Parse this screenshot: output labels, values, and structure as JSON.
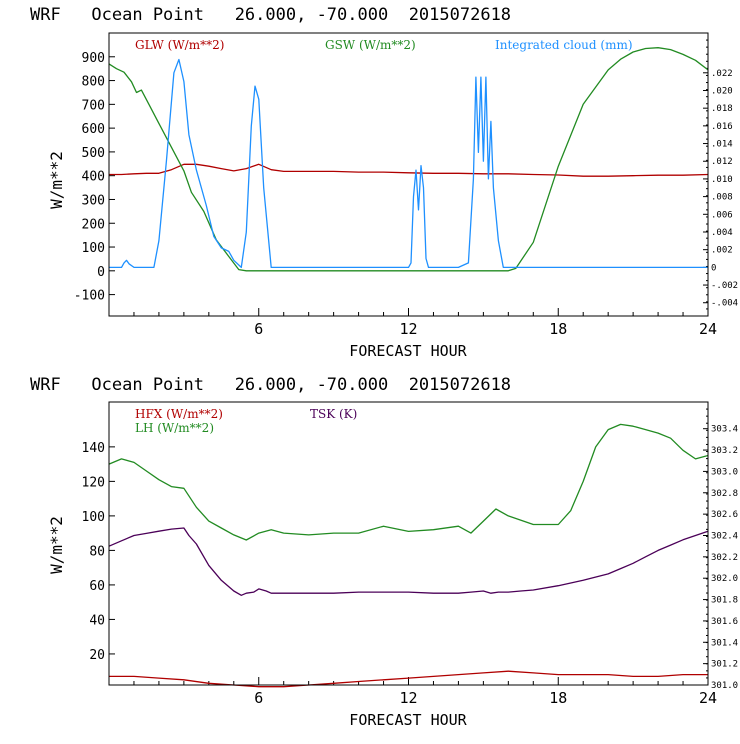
{
  "colors": {
    "glw": "#b00000",
    "gsw": "#228b22",
    "cloud": "#1e90ff",
    "hfx": "#b00000",
    "lh": "#228b22",
    "tsk": "#4b0058",
    "axis": "#000000"
  },
  "chart_data": [
    {
      "type": "line",
      "title": "WRF   Ocean Point   26.000, -70.000  2015072618",
      "xlabel": "FORECAST HOUR",
      "ylabel": "W/m**2",
      "xlim": [
        0,
        24
      ],
      "ylim": [
        -190,
        1000
      ],
      "x_ticks": [
        6,
        12,
        18,
        24
      ],
      "y_ticks": [
        -100,
        0,
        100,
        200,
        300,
        400,
        500,
        600,
        700,
        800,
        900
      ],
      "y2lim": [
        -0.0055,
        0.0265
      ],
      "y2_ticks": [
        "-.004",
        "-.002",
        "0",
        ".002",
        ".004",
        ".006",
        ".008",
        ".010",
        ".012",
        ".014",
        ".016",
        ".018",
        ".020",
        ".022"
      ],
      "y2_tick_values": [
        -0.004,
        -0.002,
        0,
        0.002,
        0.004,
        0.006,
        0.008,
        0.01,
        0.012,
        0.014,
        0.016,
        0.018,
        0.02,
        0.022
      ],
      "legend": "top",
      "series": [
        {
          "name": "GLW (W/m**2)",
          "axis": "left",
          "color": "#b00000",
          "x": [
            0,
            0.5,
            1,
            1.5,
            2,
            2.5,
            3,
            3.5,
            4,
            4.5,
            5,
            5.5,
            6,
            6.5,
            7,
            8,
            9,
            10,
            11,
            12,
            13,
            14,
            15,
            16,
            17,
            18,
            19,
            20,
            21,
            22,
            23,
            24
          ],
          "y": [
            405,
            405,
            408,
            410,
            410,
            425,
            448,
            448,
            440,
            430,
            420,
            430,
            448,
            425,
            418,
            418,
            418,
            415,
            415,
            412,
            410,
            410,
            408,
            408,
            405,
            403,
            398,
            398,
            400,
            402,
            402,
            405
          ]
        },
        {
          "name": "GSW (W/m**2)",
          "axis": "left",
          "color": "#228b22",
          "x": [
            0,
            0.3,
            0.6,
            0.9,
            1.1,
            1.3,
            1.6,
            2,
            2.5,
            3,
            3.3,
            3.8,
            4.3,
            4.8,
            5.2,
            5.5,
            6,
            8,
            10,
            12,
            14,
            16,
            16.3,
            17,
            18,
            19,
            20,
            20.5,
            21,
            21.5,
            22,
            22.5,
            23,
            23.5,
            24
          ],
          "y": [
            870,
            850,
            835,
            795,
            750,
            760,
            700,
            620,
            520,
            420,
            330,
            250,
            130,
            60,
            5,
            0,
            0,
            0,
            0,
            0,
            0,
            0,
            10,
            120,
            440,
            700,
            845,
            890,
            920,
            935,
            938,
            930,
            910,
            885,
            845
          ]
        },
        {
          "name": "Integrated cloud (mm)",
          "axis": "right",
          "color": "#1e90ff",
          "x": [
            0,
            0.5,
            0.6,
            0.7,
            0.8,
            1,
            1.8,
            2,
            2.3,
            2.6,
            2.8,
            3,
            3.2,
            3.5,
            3.9,
            4.2,
            4.5,
            4.8,
            5.0,
            5.3,
            5.5,
            5.7,
            5.85,
            6.0,
            6.2,
            6.5,
            8,
            10,
            12,
            12.1,
            12.2,
            12.3,
            12.4,
            12.5,
            12.6,
            12.7,
            12.8,
            13,
            14,
            14.4,
            14.6,
            14.7,
            14.8,
            14.9,
            15.0,
            15.1,
            15.2,
            15.3,
            15.4,
            15.6,
            15.8,
            16,
            18,
            20,
            22,
            24
          ],
          "y": [
            0,
            0,
            0.0005,
            0.0008,
            0.0004,
            0,
            0,
            0.003,
            0.012,
            0.022,
            0.0235,
            0.021,
            0.015,
            0.011,
            0.007,
            0.0035,
            0.0022,
            0.0018,
            0.0008,
            0,
            0.004,
            0.016,
            0.0205,
            0.019,
            0.009,
            0,
            0,
            0,
            0,
            0.0005,
            0.008,
            0.011,
            0.0065,
            0.0115,
            0.009,
            0.001,
            0,
            0,
            0,
            0.0005,
            0.01,
            0.0215,
            0.013,
            0.0215,
            0.012,
            0.0215,
            0.01,
            0.0165,
            0.009,
            0.003,
            0,
            0,
            0,
            0,
            0,
            0
          ]
        }
      ]
    },
    {
      "type": "line",
      "title": "WRF   Ocean Point   26.000, -70.000  2015072618",
      "xlabel": "FORECAST HOUR",
      "ylabel": "W/m**2",
      "xlim": [
        0,
        24
      ],
      "ylim": [
        2,
        166
      ],
      "x_ticks": [
        6,
        12,
        18,
        24
      ],
      "y_ticks": [
        20,
        40,
        60,
        80,
        100,
        120,
        140
      ],
      "y2lim": [
        301.0,
        303.65
      ],
      "y2_ticks": [
        "301.0",
        "301.2",
        "301.4",
        "301.6",
        "301.8",
        "302.0",
        "302.2",
        "302.4",
        "302.6",
        "302.8",
        "303.0",
        "303.2",
        "303.4"
      ],
      "y2_tick_values": [
        301.0,
        301.2,
        301.4,
        301.6,
        301.8,
        302.0,
        302.2,
        302.4,
        302.6,
        302.8,
        303.0,
        303.2,
        303.4
      ],
      "legend": "top-left",
      "series": [
        {
          "name": "HFX (W/m**2)",
          "axis": "left",
          "color": "#b00000",
          "x": [
            0,
            1,
            2,
            3,
            4,
            5,
            6,
            7,
            8,
            9,
            10,
            11,
            12,
            13,
            14,
            15,
            16,
            17,
            18,
            19,
            20,
            21,
            22,
            23,
            24
          ],
          "y": [
            7,
            7,
            6,
            5,
            3,
            2,
            1,
            1,
            2,
            3,
            4,
            5,
            6,
            7,
            8,
            9,
            10,
            9,
            8,
            8,
            8,
            7,
            7,
            8,
            8
          ]
        },
        {
          "name": "LH  (W/m**2)",
          "axis": "left",
          "color": "#228b22",
          "x": [
            0,
            0.5,
            1,
            1.5,
            2,
            2.5,
            3,
            3.5,
            4,
            4.5,
            5,
            5.5,
            6,
            6.5,
            7,
            8,
            9,
            10,
            11,
            12,
            13,
            14,
            14.5,
            15,
            15.5,
            16,
            17,
            18,
            18.5,
            19,
            19.5,
            20,
            20.5,
            21,
            21.5,
            22,
            22.5,
            23,
            23.5,
            24
          ],
          "y": [
            130,
            133,
            131,
            126,
            121,
            117,
            116,
            105,
            97,
            93,
            89,
            86,
            90,
            92,
            90,
            89,
            90,
            90,
            94,
            91,
            92,
            94,
            90,
            97,
            104,
            100,
            95,
            95,
            103,
            120,
            140,
            150,
            153,
            152,
            150,
            148,
            145,
            138,
            133,
            135
          ]
        },
        {
          "name": "TSK (K)",
          "axis": "right",
          "color": "#4b0058",
          "x": [
            0,
            0.5,
            1,
            1.5,
            2,
            2.5,
            3,
            3.2,
            3.5,
            4,
            4.5,
            5,
            5.3,
            5.5,
            5.8,
            6,
            6.3,
            6.5,
            7,
            8,
            9,
            10,
            11,
            12,
            13,
            14,
            14.5,
            15,
            15.3,
            15.6,
            16,
            16.5,
            17,
            18,
            19,
            20,
            20.5,
            21,
            21.5,
            22,
            22.5,
            23,
            23.5,
            24
          ],
          "y": [
            302.3,
            302.35,
            302.4,
            302.42,
            302.44,
            302.46,
            302.47,
            302.4,
            302.32,
            302.12,
            301.98,
            301.88,
            301.84,
            301.86,
            301.87,
            301.9,
            301.88,
            301.86,
            301.86,
            301.86,
            301.86,
            301.87,
            301.87,
            301.87,
            301.86,
            301.86,
            301.87,
            301.88,
            301.86,
            301.87,
            301.87,
            301.88,
            301.89,
            301.93,
            301.98,
            302.04,
            302.09,
            302.14,
            302.2,
            302.26,
            302.31,
            302.36,
            302.4,
            302.44
          ]
        }
      ]
    }
  ]
}
